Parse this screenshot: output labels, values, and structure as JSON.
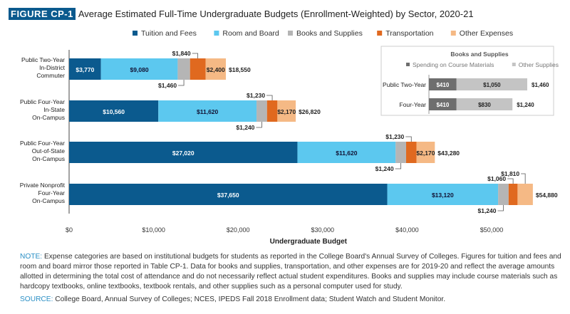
{
  "figure_label": "FIGURE CP-1",
  "chart_data": {
    "type": "bar",
    "orientation": "horizontal",
    "stacked": true,
    "title": "Average Estimated Full-Time Undergraduate Budgets (Enrollment-Weighted) by Sector, 2020-21",
    "xlabel": "Undergraduate Budget",
    "xlim": [
      0,
      55000
    ],
    "xticks": [
      "$0",
      "$10,000",
      "$20,000",
      "$30,000",
      "$40,000",
      "$50,000"
    ],
    "legend_position": "top",
    "categories": [
      [
        "Public Two-Year",
        "In-District",
        "Commuter"
      ],
      [
        "Public Four-Year",
        "In-State",
        "On-Campus"
      ],
      [
        "Public Four-Year",
        "Out-of-State",
        "On-Campus"
      ],
      [
        "Private Nonprofit",
        "Four-Year",
        "On-Campus"
      ]
    ],
    "series": [
      {
        "name": "Tuition and Fees",
        "color": "#0b5a8e",
        "values": [
          3770,
          10560,
          27020,
          37650
        ]
      },
      {
        "name": "Room and Board",
        "color": "#5cc8ef",
        "values": [
          9080,
          11620,
          11620,
          13120
        ]
      },
      {
        "name": "Books and Supplies",
        "color": "#b5b5b5",
        "values": [
          1460,
          1240,
          1240,
          1240
        ]
      },
      {
        "name": "Transportation",
        "color": "#e0691f",
        "values": [
          1840,
          1230,
          1230,
          1060
        ]
      },
      {
        "name": "Other Expenses",
        "color": "#f5b985",
        "values": [
          2400,
          2170,
          2170,
          1810
        ]
      }
    ],
    "value_labels": [
      [
        "$3,770",
        "$9,080",
        "$1,460",
        "$1,840",
        "$2,400"
      ],
      [
        "$10,560",
        "$11,620",
        "$1,240",
        "$1,230",
        "$2,170"
      ],
      [
        "$27,020",
        "$11,620",
        "$1,240",
        "$1,230",
        "$2,170"
      ],
      [
        "$37,650",
        "$13,120",
        "$1,240",
        "$1,060",
        "$1,810"
      ]
    ],
    "totals": [
      "$18,550",
      "$26,820",
      "$43,280",
      "$54,880"
    ],
    "inset": {
      "title": "Books and Supplies",
      "categories": [
        "Public Two-Year",
        "Four-Year"
      ],
      "series": [
        {
          "name": "Spending on Course Materials",
          "color": "#6e6e6e",
          "values": [
            410,
            410
          ],
          "labels": [
            "$410",
            "$410"
          ]
        },
        {
          "name": "Other Supplies",
          "color": "#c4c4c4",
          "values": [
            1050,
            830
          ],
          "labels": [
            "$1,050",
            "$830"
          ]
        }
      ],
      "totals": [
        "$1,460",
        "$1,240"
      ]
    }
  },
  "note_label": "NOTE:",
  "note": "Expense categories are based on institutional budgets for students as reported in the College Board's Annual Survey of Colleges. Figures for tuition and fees and room and board mirror those reported in Table CP-1. Data for books and supplies, transportation, and other expenses are for 2019-20 and reflect the average amounts allotted in determining the total cost of attendance and do not necessarily reflect actual student expenditures. Books and supplies may include course materials such as hardcopy textbooks, online textbooks, textbook rentals, and other supplies such as a personal computer used for study.",
  "source_label": "SOURCE:",
  "source": "College Board, Annual Survey of Colleges; NCES, IPEDS Fall 2018 Enrollment data; Student Watch and Student Monitor."
}
